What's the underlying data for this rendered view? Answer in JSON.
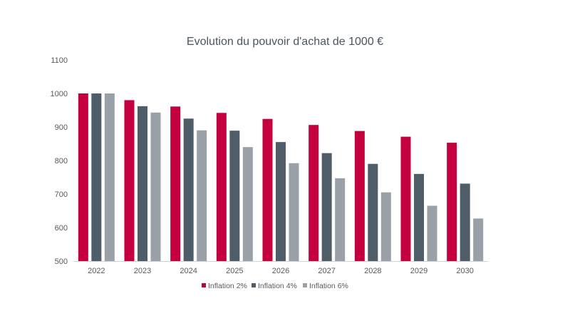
{
  "chart_data": {
    "type": "bar",
    "title": "Evolution du pouvoir d'achat de 1000 €",
    "xlabel": "",
    "ylabel": "",
    "categories": [
      "2022",
      "2023",
      "2024",
      "2025",
      "2026",
      "2027",
      "2028",
      "2029",
      "2030"
    ],
    "series": [
      {
        "name": "Inflation 2%",
        "color": "#c5003e",
        "values": [
          1000,
          980,
          961,
          942,
          924,
          906,
          888,
          871,
          853
        ]
      },
      {
        "name": "Inflation 4%",
        "color": "#4f5d69",
        "values": [
          1000,
          962,
          925,
          889,
          855,
          822,
          790,
          760,
          731
        ]
      },
      {
        "name": "Inflation 6%",
        "color": "#9aa0a8",
        "values": [
          1000,
          943,
          890,
          840,
          792,
          747,
          705,
          665,
          627
        ]
      }
    ],
    "ylim": [
      500,
      1100
    ],
    "yticks": [
      500,
      600,
      700,
      800,
      900,
      1000,
      1100
    ],
    "grid": false,
    "legend": "bottom"
  }
}
